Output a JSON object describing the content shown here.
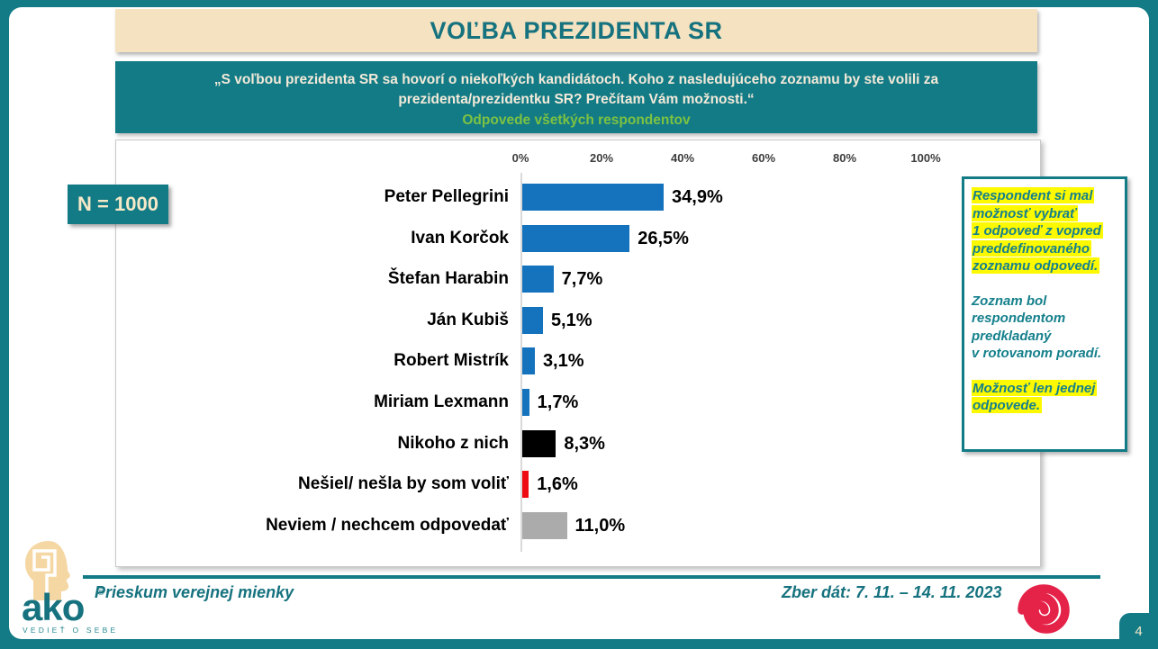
{
  "page": {
    "number": "4"
  },
  "header": {
    "title": "VOĽBA PREZIDENTA SR"
  },
  "question": {
    "line1": "„S voľbou prezidenta SR sa hovorí o niekoľkých kandidátoch. Koho z nasledujúceho zoznamu by ste volili za",
    "line2": "prezidenta/prezidentku SR? Prečítam Vám možnosti.“",
    "subtitle": "Odpovede všetkých respondentov"
  },
  "sample": {
    "label": "N = 1000"
  },
  "chart_data": {
    "type": "bar",
    "orientation": "horizontal",
    "title": "Voľba prezidenta SR - odpovede všetkých respondentov",
    "categories": [
      "Peter Pellegrini",
      "Ivan Korčok",
      "Štefan Harabin",
      "Ján Kubiš",
      "Robert Mistrík",
      "Miriam Lexmann",
      "Nikoho z nich",
      "Nešiel/ nešla by som voliť",
      "Neviem / nechcem odpovedať"
    ],
    "values": [
      34.9,
      26.5,
      7.7,
      5.1,
      3.1,
      1.7,
      8.3,
      1.6,
      11.0
    ],
    "value_labels": [
      "34,9%",
      "26,5%",
      "7,7%",
      "5,1%",
      "3,1%",
      "1,7%",
      "8,3%",
      "1,6%",
      "11,0%"
    ],
    "bar_colors": [
      "#1572bd",
      "#1572bd",
      "#1572bd",
      "#1572bd",
      "#1572bd",
      "#1572bd",
      "#000000",
      "#ee0b12",
      "#ababab"
    ],
    "x_ticks": [
      "0%",
      "20%",
      "40%",
      "60%",
      "80%",
      "100%"
    ],
    "xlim": [
      0,
      100
    ],
    "grid": false,
    "legend": false
  },
  "note": {
    "paragraphs": [
      {
        "text": "Respondent si mal\nmožnosť vybrať\n1 odpoveď z vopred\npreddefinovaného\nzoznamu odpovedí.",
        "highlight": true
      },
      {
        "text": "Zoznam bol\nrespondentom\npredkladaný\nv rotovanom poradí.",
        "highlight": false
      },
      {
        "text": "Možnosť len jednej\nodpovede.",
        "highlight": true
      }
    ]
  },
  "footer": {
    "left": "Prieskum verejnej mienky",
    "right": "Zber dát: 7. 11. – 14. 11. 2023",
    "logo": {
      "brand": "ako",
      "registered": "®",
      "tagline": "VEDIEŤ O SEBE"
    }
  },
  "colors": {
    "teal": "#137b86",
    "title_text": "#15727e",
    "beige": "#f4e2c0",
    "subtitle_green": "#7cc242",
    "note_highlight": "#fdf900",
    "bar_blue": "#1572bd",
    "bar_black": "#000000",
    "bar_red": "#ee0b12",
    "bar_gray": "#ababab",
    "spiral_red": "#e52349"
  }
}
